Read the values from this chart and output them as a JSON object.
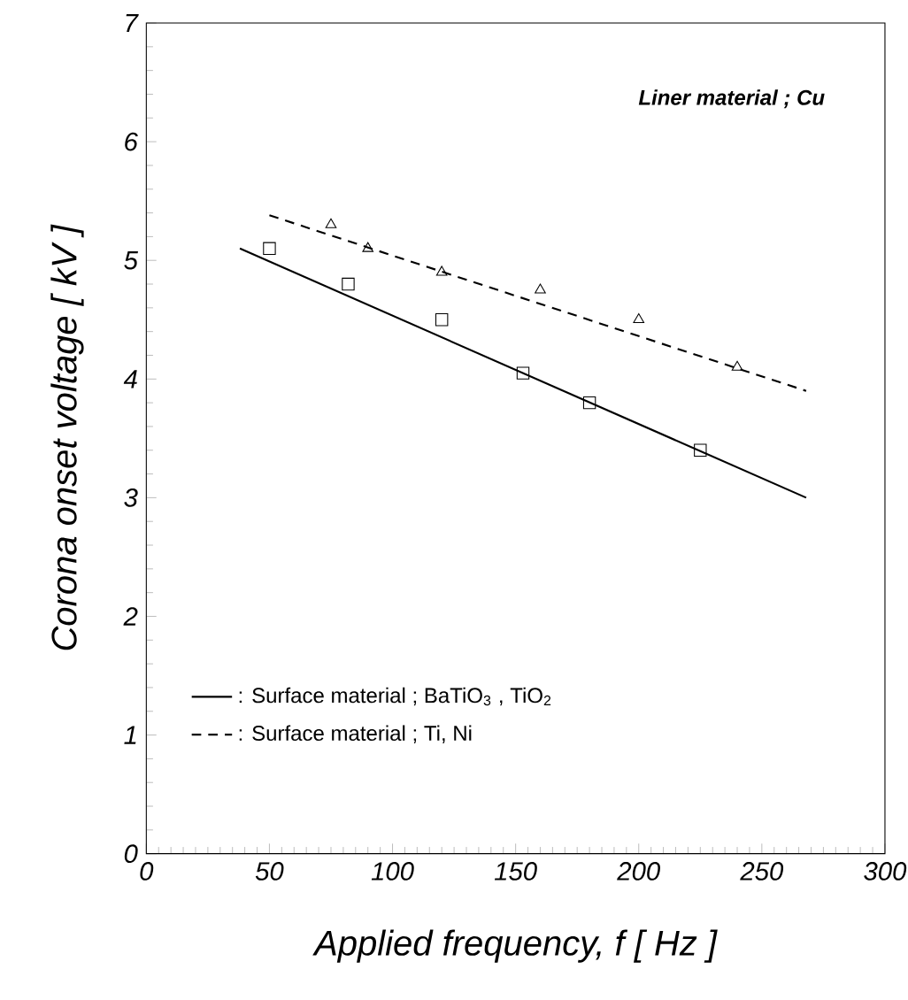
{
  "chart_data": {
    "type": "line",
    "xlabel": "Applied frequency, f [ Hz ]",
    "ylabel": "Corona onset voltage [ kV ]",
    "annotations": [
      "Liner material ; Cu"
    ],
    "xlim": [
      0,
      300
    ],
    "xticks": [
      0,
      50,
      100,
      150,
      200,
      250,
      300
    ],
    "ylim": [
      0,
      7
    ],
    "yticks": [
      0,
      1,
      2,
      3,
      4,
      5,
      6,
      7
    ],
    "grid": false,
    "legend": "bottom left",
    "series": [
      {
        "type": "scatter",
        "marker": "square",
        "color": "#000000",
        "x": [
          50,
          82,
          120,
          153,
          180,
          225
        ],
        "values": [
          5.1,
          4.8,
          4.5,
          4.05,
          3.8,
          3.4
        ]
      },
      {
        "type": "scatter",
        "marker": "triangle",
        "color": "#000000",
        "x": [
          75,
          90,
          120,
          160,
          200,
          240
        ],
        "values": [
          5.3,
          5.1,
          4.9,
          4.75,
          4.5,
          4.1
        ]
      },
      {
        "name": ": Surface material ; BaTiO$_{3}$ ,  TiO$_{2}$",
        "line_style": "solid",
        "marker": "none",
        "color": "#000000",
        "x": [
          38,
          268
        ],
        "values": [
          5.1,
          3.0
        ]
      },
      {
        "name": ": Surface material ; Ti, Ni",
        "line_style": "dashed",
        "marker": "none",
        "color": "#000000",
        "x": [
          50,
          268
        ],
        "values": [
          5.38,
          3.9
        ]
      }
    ]
  }
}
